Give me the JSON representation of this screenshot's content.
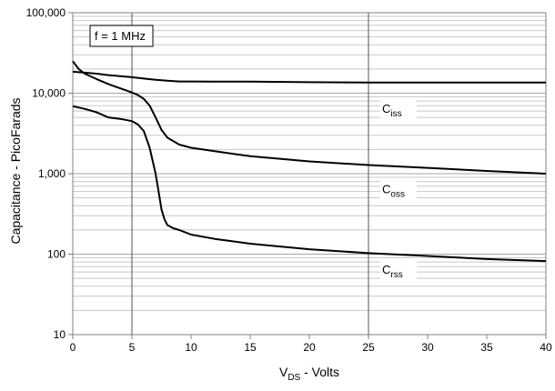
{
  "chart_data": {
    "type": "line",
    "title": "",
    "xlabel": {
      "main": "V",
      "sub": "DS",
      "rest": " - Volts"
    },
    "ylabel": "Capacitance - PicoFarads",
    "xlim": [
      0,
      40
    ],
    "ylim": [
      10,
      100000
    ],
    "yscale": "log",
    "grid": "on",
    "legend": "none",
    "x_ticks": [
      "0",
      "5",
      "10",
      "15",
      "20",
      "25",
      "30",
      "35",
      "40"
    ],
    "y_ticks": [
      "10",
      "100",
      "1,000",
      "10,000",
      "100,000"
    ],
    "annotation": "f = 1 MHz",
    "series": [
      {
        "name": "Ciss",
        "label": {
          "main": "C",
          "sub": "iss"
        },
        "label_at": {
          "x": 26,
          "y": 6000
        },
        "x": [
          0,
          1,
          2,
          3,
          4,
          5,
          6,
          7,
          8,
          9,
          10,
          12,
          15,
          20,
          25,
          30,
          35,
          40
        ],
        "y": [
          18500,
          18000,
          17500,
          16800,
          16300,
          15800,
          15200,
          14700,
          14300,
          14000,
          14000,
          13900,
          13900,
          13700,
          13600,
          13600,
          13600,
          13600
        ]
      },
      {
        "name": "Coss",
        "label": {
          "main": "C",
          "sub": "oss"
        },
        "label_at": {
          "x": 26,
          "y": 600
        },
        "x": [
          0,
          0.5,
          1,
          2,
          3,
          4,
          5,
          5.5,
          6,
          6.5,
          7,
          7.5,
          8,
          9,
          10,
          12,
          15,
          20,
          25,
          30,
          35,
          40
        ],
        "y": [
          25000,
          20000,
          17500,
          15000,
          13000,
          11500,
          10200,
          9500,
          8500,
          7000,
          5000,
          3500,
          2800,
          2300,
          2100,
          1900,
          1650,
          1420,
          1280,
          1180,
          1080,
          1000
        ],
        "vertical_at_start_to": 6900
      },
      {
        "name": "Crss",
        "label": {
          "main": "C",
          "sub": "rss"
        },
        "label_at": {
          "x": 26,
          "y": 60
        },
        "x": [
          0,
          1,
          2,
          3,
          4,
          5,
          5.5,
          6,
          6.5,
          7,
          7.25,
          7.5,
          7.75,
          8,
          8.5,
          9,
          10,
          12,
          15,
          20,
          25,
          30,
          35,
          40
        ],
        "y": [
          6900,
          6400,
          5800,
          5000,
          4800,
          4500,
          4100,
          3400,
          2100,
          1000,
          600,
          360,
          270,
          230,
          210,
          200,
          175,
          155,
          135,
          115,
          103,
          95,
          87,
          82
        ]
      }
    ],
    "colors": {
      "line": "#000000",
      "grid": "#a6a6a6",
      "axis": "#808080",
      "background": "#ffffff"
    }
  }
}
